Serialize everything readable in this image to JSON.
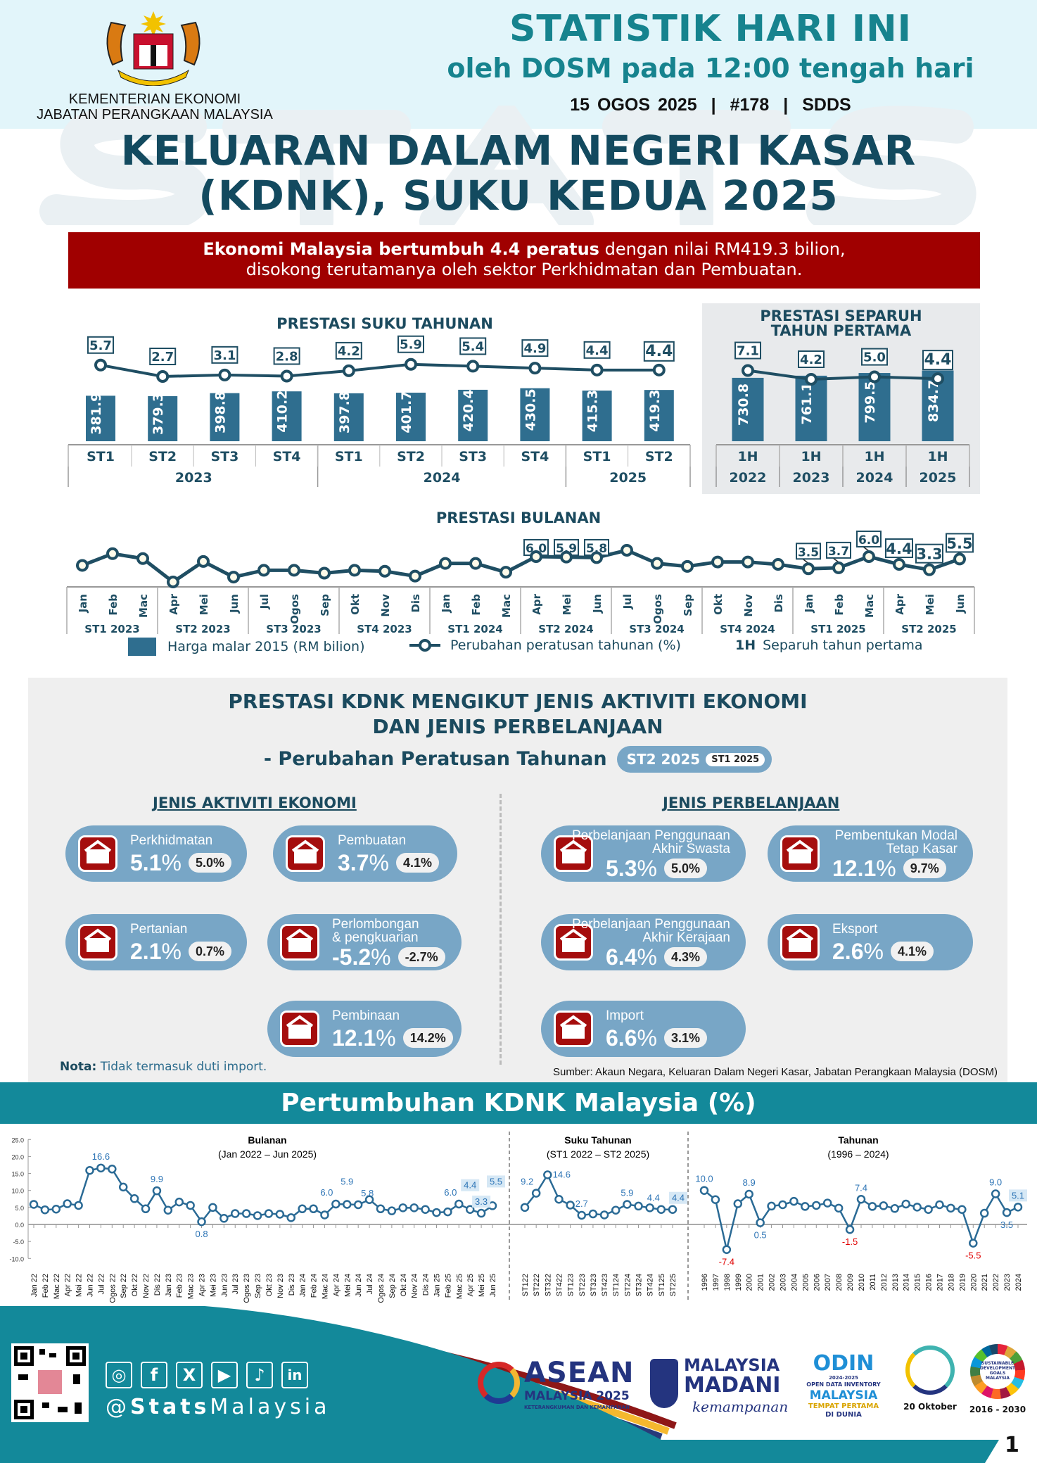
{
  "header": {
    "ministry": "KEMENTERIAN EKONOMI",
    "department": "JABATAN PERANGKAAN MALAYSIA",
    "title": "STATISTIK HARI INI",
    "subtitle": "oleh DOSM pada 12:00 tengah hari",
    "date": "15 OGOS 2025",
    "issue": "#178",
    "standard": "SDDS",
    "separator": "|",
    "watermark": "STATS"
  },
  "main_title": {
    "line1": "KELUARAN DALAM NEGERI KASAR",
    "line2": "(KDNK), SUKU KEDUA 2025"
  },
  "highlight": {
    "bold": "Ekonomi Malaysia bertumbuh 4.4 peratus",
    "rest": " dengan nilai RM419.3 bilion,",
    "line2": "disokong terutamanya oleh sektor Perkhidmatan dan Pembuatan."
  },
  "quarterly": {
    "title": "PRESTASI SUKU TAHUNAN",
    "quarters": [
      "ST1",
      "ST2",
      "ST3",
      "ST4",
      "ST1",
      "ST2",
      "ST3",
      "ST4",
      "ST1",
      "ST2"
    ],
    "years": [
      {
        "label": "2023",
        "span": 4
      },
      {
        "label": "2024",
        "span": 4
      },
      {
        "label": "2025",
        "span": 2
      }
    ],
    "gdp": [
      381.9,
      379.3,
      398.8,
      410.2,
      397.8,
      401.7,
      420.4,
      430.5,
      415.3,
      419.3
    ],
    "growth": [
      5.7,
      2.7,
      3.1,
      2.8,
      4.2,
      5.9,
      5.4,
      4.9,
      4.4,
      4.4
    ]
  },
  "half_year": {
    "title_line1": "PRESTASI SEPARUH",
    "title_line2": "TAHUN PERTAMA",
    "periods": [
      "1H",
      "1H",
      "1H",
      "1H"
    ],
    "years": [
      "2022",
      "2023",
      "2024",
      "2025"
    ],
    "gdp": [
      730.8,
      761.1,
      799.5,
      834.7
    ],
    "growth": [
      7.1,
      4.2,
      5.0,
      4.4
    ]
  },
  "monthly": {
    "title": "PRESTASI BULANAN",
    "months": [
      "Jan",
      "Feb",
      "Mac",
      "Apr",
      "Mei",
      "Jun",
      "Jul",
      "Ogos",
      "Sep",
      "Okt",
      "Nov",
      "Dis",
      "Jan",
      "Feb",
      "Mac",
      "Apr",
      "Mei",
      "Jun",
      "Jul",
      "Ogos",
      "Sep",
      "Okt",
      "Nov",
      "Dis",
      "Jan",
      "Feb",
      "Mac",
      "Apr",
      "Mei",
      "Jun"
    ],
    "quarters": [
      "ST1 2023",
      "ST2 2023",
      "ST3 2023",
      "ST4 2023",
      "ST1 2024",
      "ST2 2024",
      "ST3 2024",
      "ST4 2024",
      "ST1 2025",
      "ST2 2025"
    ],
    "growth": [
      4.2,
      6.6,
      5.6,
      0.8,
      5.0,
      1.8,
      3.2,
      3.2,
      2.6,
      3.2,
      3.0,
      2.0,
      4.6,
      4.6,
      2.8,
      6.0,
      5.9,
      5.8,
      7.3,
      4.6,
      4.0,
      4.9,
      4.9,
      4.4,
      3.5,
      3.7,
      6.0,
      4.4,
      3.3,
      5.5
    ],
    "labeled_points": [
      15,
      16,
      17,
      24,
      25,
      26,
      27,
      28,
      29
    ]
  },
  "legend": {
    "bar": "Harga malar 2015 (RM bilion)",
    "line": "Perubahan peratusan tahunan (%)",
    "h_abbr": "1H",
    "h_text": "Separuh tahun pertama"
  },
  "sectors": {
    "title_line1": "PRESTASI KDNK MENGIKUT JENIS AKTIVITI EKONOMI",
    "title_line2": "DAN JENIS PERBELANJAAN",
    "subtitle": "- Perubahan Peratusan Tahunan",
    "current_badge": "ST2 2025",
    "previous_badge": "ST1 2025",
    "economic_header": "JENIS AKTIVITI EKONOMI",
    "expenditure_header": "JENIS PERBELANJAAN",
    "economic": [
      {
        "label": "Perkhidmatan",
        "value": "5.1",
        "prev": "5.0%",
        "icon": "delivery-truck-icon"
      },
      {
        "label": "Pembuatan",
        "value": "3.7",
        "prev": "4.1%",
        "icon": "factory-icon"
      },
      {
        "label": "Pertanian",
        "value": "2.1",
        "prev": "0.7%",
        "icon": "agriculture-icon"
      },
      {
        "label": "Perlombongan",
        "label2": "& pengkuarian",
        "value": "-5.2",
        "prev": "-2.7%",
        "icon": "oil-rig-icon"
      },
      {
        "label": "Pembinaan",
        "value": "12.1",
        "prev": "14.2%",
        "icon": "crane-icon"
      }
    ],
    "expenditure": [
      {
        "label": "Perbelanjaan Penggunaan",
        "label2": "Akhir Swasta",
        "value": "5.3",
        "prev": "5.0%",
        "icon": "house-money-icon"
      },
      {
        "label": "Pembentukan Modal",
        "label2": "Tetap Kasar",
        "value": "12.1",
        "prev": "9.7%",
        "icon": "building-icon"
      },
      {
        "label": "Perbelanjaan Penggunaan",
        "label2": "Akhir Kerajaan",
        "value": "6.4",
        "prev": "4.3%",
        "icon": "government-building-icon"
      },
      {
        "label": "Eksport",
        "value": "2.6",
        "prev": "4.1%",
        "icon": "export-truck-icon"
      },
      {
        "label": "Import",
        "value": "6.6",
        "prev": "3.1%",
        "icon": "import-truck-icon"
      }
    ],
    "percent": "%",
    "note_label": "Nota:",
    "note_text": " Tidak termasuk duti import.",
    "source": "Sumber: Akaun Negara, Keluaran Dalam Negeri Kasar, Jabatan Perangkaan Malaysia (DOSM)"
  },
  "growth_section": {
    "title": "Pertumbuhan KDNK Malaysia (%)"
  },
  "chart_data": [
    {
      "type": "line",
      "title": "Bulanan",
      "subtitle": "(Jan 2022 – Jun 2025)",
      "ylim": [
        -10,
        25
      ],
      "yticks": [
        "25.0",
        "20.0",
        "15.0",
        "10.0",
        "5.0",
        "0.0",
        "-5.0",
        "-10.0"
      ],
      "x": [
        "Jan 22",
        "Feb 22",
        "Mac 22",
        "Apr 22",
        "Mei 22",
        "Jun 22",
        "Jul 22",
        "Ogos 22",
        "Sep 22",
        "Okt 22",
        "Nov 22",
        "Dis 22",
        "Jan 23",
        "Feb 23",
        "Mac 23",
        "Apr 23",
        "Mei 23",
        "Jun 23",
        "Jul 23",
        "Ogos 23",
        "Sep 23",
        "Okt 23",
        "Nov 23",
        "Dis 23",
        "Jan 24",
        "Feb 24",
        "Mac 24",
        "Apr 24",
        "Mei 24",
        "Jun 24",
        "Jul 24",
        "Ogos 24",
        "Sep 24",
        "Okt 24",
        "Nov 24",
        "Dis 24",
        "Jan 25",
        "Feb 25",
        "Mac 25",
        "Apr 25",
        "Mei 25",
        "Jun 25"
      ],
      "values": [
        5.9,
        4.3,
        4.5,
        6.1,
        5.6,
        15.9,
        16.6,
        16.3,
        11.0,
        7.6,
        4.6,
        9.9,
        4.2,
        6.6,
        5.6,
        0.8,
        5.0,
        1.8,
        3.2,
        3.2,
        2.6,
        3.2,
        3.0,
        2.0,
        4.6,
        4.6,
        2.8,
        6.0,
        5.9,
        5.8,
        7.3,
        4.6,
        4.0,
        4.9,
        4.9,
        4.4,
        3.5,
        3.7,
        6.0,
        4.4,
        3.3,
        5.5
      ],
      "labels": [
        {
          "i": 6,
          "t": "16.6"
        },
        {
          "i": 11,
          "t": "9.9"
        },
        {
          "i": 15,
          "t": "0.8",
          "below": true
        },
        {
          "i": 27,
          "t": "6.0"
        },
        {
          "i": 28,
          "t": "5.9"
        },
        {
          "i": 29,
          "t": "5.8"
        },
        {
          "i": 38,
          "t": "6.0"
        },
        {
          "i": 39,
          "t": "4.4",
          "hl": true
        },
        {
          "i": 40,
          "t": "3.3",
          "hl": true
        },
        {
          "i": 41,
          "t": "5.5",
          "hl": true
        }
      ]
    },
    {
      "type": "line",
      "title": "Suku Tahunan",
      "subtitle": "(ST1 2022 – ST2 2025)",
      "x": [
        "ST122",
        "ST222",
        "ST322",
        "ST422",
        "ST123",
        "ST223",
        "ST323",
        "ST423",
        "ST124",
        "ST224",
        "ST324",
        "ST424",
        "ST125",
        "ST225"
      ],
      "values": [
        5.0,
        9.2,
        14.6,
        7.4,
        5.7,
        2.7,
        3.1,
        2.8,
        4.2,
        5.9,
        5.4,
        4.9,
        4.4,
        4.4
      ],
      "labels": [
        {
          "i": 1,
          "t": "9.2"
        },
        {
          "i": 2,
          "t": "14.6"
        },
        {
          "i": 5,
          "t": "2.7"
        },
        {
          "i": 9,
          "t": "5.9"
        },
        {
          "i": 12,
          "t": "4.4"
        },
        {
          "i": 13,
          "t": "4.4",
          "hl": true
        }
      ]
    },
    {
      "type": "line",
      "title": "Tahunan",
      "subtitle": "(1996 – 2024)",
      "x": [
        "1996",
        "1997",
        "1998",
        "1999",
        "2000",
        "2001",
        "2002",
        "2003",
        "2004",
        "2005",
        "2006",
        "2007",
        "2008",
        "2009",
        "2010",
        "2011",
        "2012",
        "2013",
        "2014",
        "2015",
        "2016",
        "2017",
        "2018",
        "2019",
        "2020",
        "2021",
        "2022",
        "2023",
        "2024"
      ],
      "values": [
        10.0,
        7.3,
        -7.4,
        6.1,
        8.9,
        0.5,
        5.4,
        5.8,
        6.8,
        5.3,
        5.6,
        6.3,
        4.8,
        -1.5,
        7.4,
        5.3,
        5.5,
        4.7,
        6.0,
        5.1,
        4.4,
        5.8,
        4.8,
        4.4,
        -5.5,
        3.3,
        9.0,
        3.5,
        5.1
      ],
      "labels": [
        {
          "i": 0,
          "t": "10.0"
        },
        {
          "i": 2,
          "t": "-7.4",
          "below": true,
          "neg": true
        },
        {
          "i": 4,
          "t": "8.9"
        },
        {
          "i": 5,
          "t": "0.5",
          "below": true
        },
        {
          "i": 13,
          "t": "-1.5",
          "below": true,
          "neg": true
        },
        {
          "i": 14,
          "t": "7.4"
        },
        {
          "i": 24,
          "t": "-5.5",
          "below": true,
          "neg": true
        },
        {
          "i": 26,
          "t": "9.0"
        },
        {
          "i": 27,
          "t": "3.5",
          "below": true
        },
        {
          "i": 28,
          "t": "5.1",
          "hl": true
        }
      ]
    }
  ],
  "footer": {
    "handle_at": "@",
    "handle_bold": "Stats",
    "handle_rest": "Malaysia",
    "social": [
      "instagram",
      "facebook",
      "x",
      "youtube",
      "tiktok",
      "linkedin"
    ],
    "asean_name": "ASEAN",
    "asean_sub": "MALAYSIA 2025",
    "asean_tag": "KETERANGKUMAN DAN KEMAMPANAN",
    "madani_l1": "MALAYSIA",
    "madani_l2": "MADANI",
    "madani_tag": "kemampanan",
    "odin": "ODIN",
    "odin_years": "2024-2025",
    "odin_l1": "OPEN DATA INVENTORY",
    "odin_l2": "MALAYSIA",
    "odin_l3": "TEMPAT PERTAMA",
    "odin_l4": "DI DUNIA",
    "stats_day": "20 Oktober",
    "sdg_text": "SUSTAINABLE DEVELOPMENT GOALS MALAYSIA",
    "sdg_years": "2016 - 2030",
    "page": "1"
  },
  "colors": {
    "teal": "#16838e",
    "navy": "#134a5f",
    "red": "#a00000",
    "bar": "#2f6e8f",
    "pill": "#78a6c6"
  }
}
